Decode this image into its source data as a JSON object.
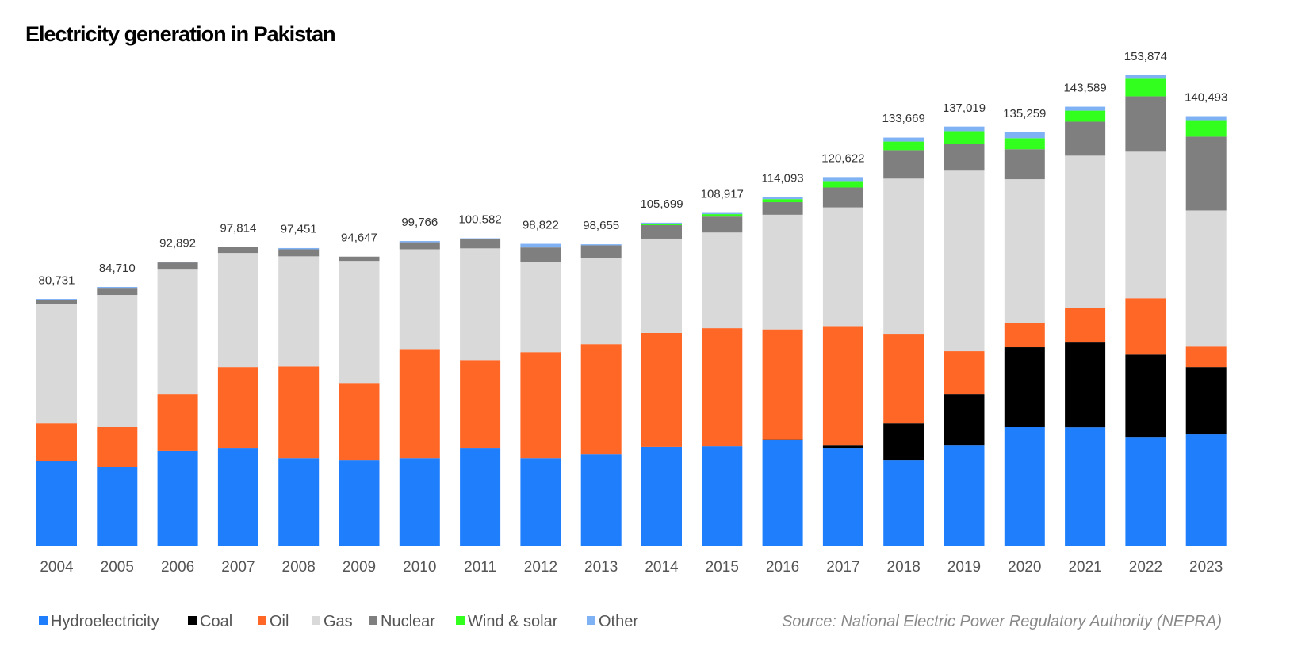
{
  "chart_data": {
    "type": "bar",
    "stacked": true,
    "title": "Electricity generation in Pakistan",
    "source": "Source: National Electric Power Regulatory Authority (NEPRA)",
    "legend_placement": "bottom-left",
    "grid": false,
    "categories": [
      "2004",
      "2005",
      "2006",
      "2007",
      "2008",
      "2009",
      "2010",
      "2011",
      "2012",
      "2013",
      "2014",
      "2015",
      "2016",
      "2017",
      "2018",
      "2019",
      "2020",
      "2021",
      "2022",
      "2023"
    ],
    "totals": [
      80731,
      84710,
      92892,
      97814,
      97451,
      94647,
      99766,
      100582,
      98822,
      98655,
      105699,
      108917,
      114093,
      120622,
      133669,
      137019,
      135259,
      143589,
      153874,
      140493
    ],
    "total_labels": [
      "80,731",
      "84,710",
      "92,892",
      "97,814",
      "97,451",
      "94,647",
      "99,766",
      "100,582",
      "98,822",
      "98,655",
      "105,699",
      "108,917",
      "114,093",
      "120,622",
      "133,669",
      "137,019",
      "135,259",
      "143,589",
      "153,874",
      "140,493"
    ],
    "series": [
      {
        "name": "Hydroelectricity",
        "color": "#1f7efc",
        "values": [
          27700,
          25900,
          31100,
          32100,
          28700,
          28200,
          28700,
          32100,
          28700,
          30000,
          32400,
          32600,
          34700,
          32100,
          28200,
          33100,
          39100,
          38800,
          35700,
          36500
        ]
      },
      {
        "name": "Coal",
        "color": "#000000",
        "values": [
          200,
          0,
          0,
          0,
          0,
          0,
          0,
          0,
          0,
          0,
          0,
          0,
          100,
          1000,
          11900,
          16600,
          25900,
          28000,
          26900,
          22000
        ]
      },
      {
        "name": "Oil",
        "color": "#ff6726",
        "values": [
          12200,
          13000,
          18600,
          26400,
          30000,
          25100,
          35700,
          28700,
          34700,
          36000,
          37300,
          38600,
          36000,
          38800,
          29300,
          14000,
          7800,
          11100,
          18400,
          6700
        ]
      },
      {
        "name": "Gas",
        "color": "#d9d9d9",
        "values": [
          39100,
          43200,
          40900,
          37300,
          36000,
          39900,
          32600,
          36500,
          29500,
          28200,
          30800,
          31300,
          37500,
          38800,
          50700,
          59000,
          47100,
          49700,
          47900,
          44500
        ]
      },
      {
        "name": "Nuclear",
        "color": "#7f7f7f",
        "values": [
          1300,
          2300,
          2100,
          2000,
          2300,
          1400,
          2300,
          3100,
          4700,
          4100,
          4400,
          5200,
          4100,
          6500,
          9300,
          8800,
          9800,
          11100,
          18100,
          24100
        ]
      },
      {
        "name": "Wind & solar",
        "color": "#33ff1f",
        "values": [
          0,
          0,
          0,
          0,
          0,
          0,
          0,
          0,
          0,
          0,
          500,
          800,
          1000,
          2100,
          2800,
          4100,
          3600,
          3600,
          5700,
          5400
        ]
      },
      {
        "name": "Other",
        "color": "#7fb2f5",
        "values": [
          300,
          300,
          200,
          0,
          400,
          0,
          400,
          200,
          1200,
          350,
          300,
          400,
          800,
          1300,
          1300,
          1500,
          2000,
          1300,
          1300,
          1300
        ]
      }
    ]
  }
}
